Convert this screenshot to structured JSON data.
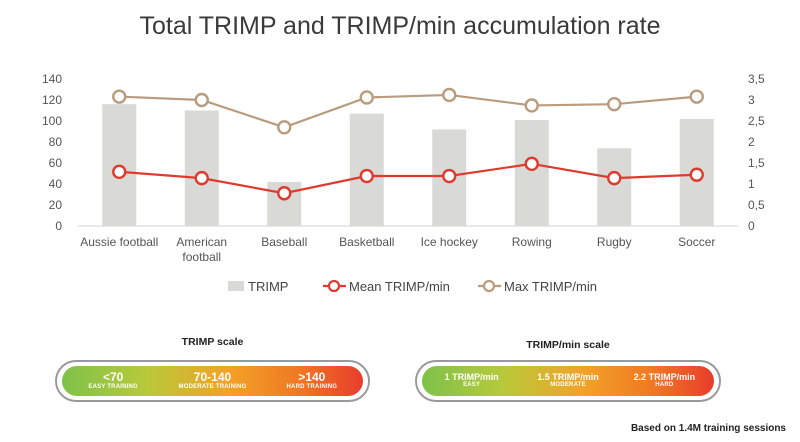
{
  "chart_data": {
    "type": "bar+line",
    "title": "Total TRIMP and TRIMP/min accumulation rate",
    "categories": [
      "Aussie football",
      "American football",
      "Baseball",
      "Basketball",
      "Ice hockey",
      "Rowing",
      "Rugby",
      "Soccer"
    ],
    "y_left": {
      "ticks": [
        "0",
        "20",
        "40",
        "60",
        "80",
        "100",
        "120",
        "140"
      ],
      "ylim": [
        0,
        140
      ]
    },
    "y_right": {
      "ticks": [
        "0",
        "0,5",
        "1",
        "1,5",
        "2",
        "2,5",
        "3",
        "3,5"
      ],
      "ylim": [
        0,
        3.5
      ]
    },
    "series": [
      {
        "name": "TRIMP",
        "kind": "bar",
        "axis": "left",
        "color": "#d9d9d6",
        "values": [
          116,
          110,
          42,
          107,
          92,
          101,
          74,
          102
        ]
      },
      {
        "name": "Mean TRIMP/min",
        "kind": "line",
        "axis": "right",
        "color": "#e03a2f",
        "values": [
          1.29,
          1.14,
          0.78,
          1.19,
          1.19,
          1.48,
          1.14,
          1.22
        ]
      },
      {
        "name": "Max TRIMP/min",
        "kind": "line",
        "axis": "right",
        "color": "#b99b7d",
        "values": [
          3.08,
          3.0,
          2.35,
          3.06,
          3.12,
          2.87,
          2.9,
          3.08
        ]
      }
    ],
    "grid": false,
    "legend_position": "bottom"
  },
  "trimp_scale": {
    "title": "TRIMP scale",
    "segments": [
      {
        "value": "<70",
        "label": "EASY TRAINING"
      },
      {
        "value": "70-140",
        "label": "MODERATE TRAINING"
      },
      {
        "value": ">140",
        "label": "HARD TRAINING"
      }
    ]
  },
  "rate_scale": {
    "title": "TRIMP/min scale",
    "segments": [
      {
        "value": "1 TRIMP/min",
        "label": "EASY"
      },
      {
        "value": "1.5 TRIMP/min",
        "label": "MODERATE"
      },
      {
        "value": "2.2 TRIMP/min",
        "label": "HARD"
      }
    ]
  },
  "footnote": "Based on 1.4M training sessions"
}
